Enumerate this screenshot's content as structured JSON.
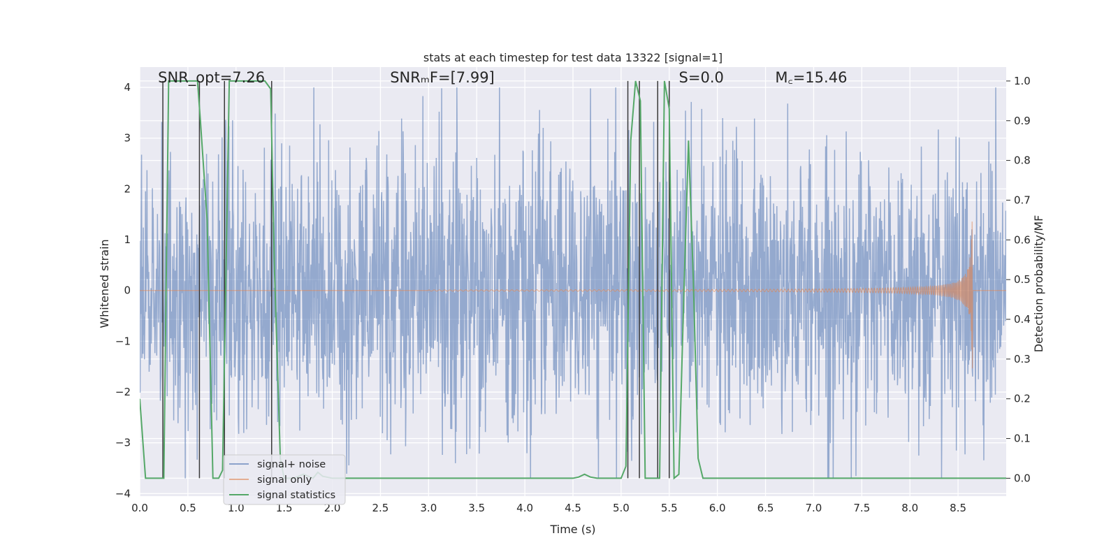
{
  "chart_data": {
    "type": "line",
    "title": "stats at each timestep for test data 13322 [signal=1]",
    "xlabel": "Time (s)",
    "ylabel": "Whitened strain",
    "y2label": "Detection probability/MF",
    "xlim": [
      0,
      9
    ],
    "ylim": [
      -4.05,
      4.4
    ],
    "y2lim": [
      -0.045,
      1.035
    ],
    "x_ticks": [
      0,
      0.5,
      1,
      1.5,
      2,
      2.5,
      3,
      3.5,
      4,
      4.5,
      5,
      5.5,
      6,
      6.5,
      7,
      7.5,
      8,
      8.5
    ],
    "x_tick_labels": [
      "0.0",
      "0.5",
      "1.0",
      "1.5",
      "2.0",
      "2.5",
      "3.0",
      "3.5",
      "4.0",
      "4.5",
      "5.0",
      "5.5",
      "6.0",
      "6.5",
      "7.0",
      "7.5",
      "8.0",
      "8.5"
    ],
    "y_ticks": [
      -4,
      -3,
      -2,
      -1,
      0,
      1,
      2,
      3,
      4
    ],
    "y_tick_labels": [
      "−4",
      "−3",
      "−2",
      "−1",
      "0",
      "1",
      "2",
      "3",
      "4"
    ],
    "y2_ticks": [
      0,
      0.1,
      0.2,
      0.3,
      0.4,
      0.5,
      0.6,
      0.7,
      0.8,
      0.9,
      1.0
    ],
    "y2_tick_labels": [
      "0.0",
      "0.1",
      "0.2",
      "0.3",
      "0.4",
      "0.5",
      "0.6",
      "0.7",
      "0.8",
      "0.9",
      "1.0"
    ],
    "grid": true,
    "legend_position": "lower-left",
    "annotations": [
      {
        "id": "snr-opt",
        "text": "SNR_opt=7.26",
        "x": 0.19,
        "y": 4.1
      },
      {
        "id": "snr-mf",
        "text": "SNRₘF=[7.99]",
        "x": 2.6,
        "y": 4.1
      },
      {
        "id": "s-stat",
        "text": "S=0.0",
        "x": 5.6,
        "y": 4.1
      },
      {
        "id": "chirp-mass",
        "text": "M꜀=15.46",
        "x": 6.6,
        "y": 4.1
      }
    ],
    "series": [
      {
        "name": "signal+ noise",
        "color": "#4c72b0",
        "description_values": {
          "x_range": [
            0,
            9
          ],
          "typical_amplitude": 1.4,
          "max_peaks": 4.0
        }
      },
      {
        "name": "signal only",
        "color": "#dd8452",
        "description_values": {
          "chirp_start": 4.5,
          "chirp_peak_time": 8.65,
          "peak_amplitude": 1.8
        }
      },
      {
        "name": "signal statistics",
        "color": "#55a868",
        "axis": "secondary",
        "x": [
          0,
          0.06,
          0.1,
          0.18,
          0.25,
          0.3,
          0.45,
          0.6,
          0.63,
          0.7,
          0.76,
          0.82,
          0.86,
          0.93,
          1.0,
          1.1,
          1.3,
          1.36,
          1.4,
          1.46,
          1.5,
          1.55,
          1.6,
          1.7,
          1.8,
          1.85,
          1.9,
          2.0,
          2.1,
          2.2,
          2.5,
          3.0,
          3.5,
          4.0,
          4.5,
          4.56,
          4.62,
          4.68,
          4.75,
          5.0,
          5.05,
          5.1,
          5.15,
          5.2,
          5.25,
          5.3,
          5.35,
          5.4,
          5.45,
          5.5,
          5.55,
          5.6,
          5.65,
          5.7,
          5.75,
          5.8,
          5.85,
          5.9,
          6.0,
          6.5,
          7.0,
          7.5,
          8.0,
          8.5,
          9.0
        ],
        "y": [
          0.2,
          0.0,
          0.0,
          0.0,
          0.0,
          1.0,
          1.0,
          1.0,
          0.9,
          0.65,
          0.0,
          0.0,
          0.02,
          1.0,
          1.0,
          1.0,
          1.0,
          0.98,
          0.52,
          0.05,
          0.0,
          0.0,
          0.0,
          0.01,
          0.0,
          0.015,
          0.005,
          0.0,
          0.0,
          0.0,
          0.0,
          0.0,
          0.0,
          0.0,
          0.0,
          0.003,
          0.01,
          0.003,
          0.0,
          0.0,
          0.03,
          0.85,
          1.0,
          0.95,
          0.0,
          0.0,
          0.0,
          0.0,
          1.0,
          0.93,
          0.0,
          0.01,
          0.45,
          0.85,
          0.5,
          0.05,
          0.0,
          0.0,
          0.0,
          0.0,
          0.0,
          0.0,
          0.0,
          0.0,
          0.0
        ]
      }
    ],
    "vertical_markers": [
      {
        "x": 0.24,
        "y1": 0.0,
        "y2": 1.0
      },
      {
        "x": 0.62,
        "y1": 0.0,
        "y2": 1.0
      },
      {
        "x": 0.88,
        "y1": 0.0,
        "y2": 1.0
      },
      {
        "x": 1.37,
        "y1": 0.0,
        "y2": 1.0
      },
      {
        "x": 5.07,
        "y1": 0.0,
        "y2": 1.0
      },
      {
        "x": 5.19,
        "y1": 0.0,
        "y2": 1.0
      },
      {
        "x": 5.38,
        "y1": 0.0,
        "y2": 1.0
      },
      {
        "x": 5.5,
        "y1": 0.0,
        "y2": 1.0
      }
    ]
  }
}
